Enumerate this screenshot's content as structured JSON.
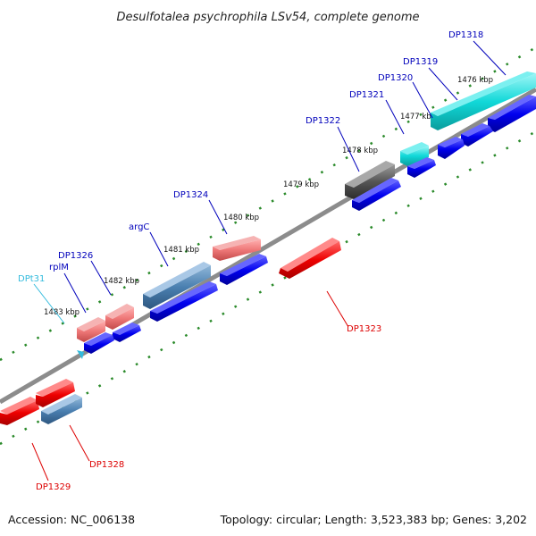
{
  "header": {
    "title": "Desulfotalea psychrophila LSv54, complete genome"
  },
  "footer": {
    "accession": "Accession: NC_006138",
    "summary": "Topology: circular; Length: 3,523,383 bp; Genes: 3,202"
  },
  "ticks": [
    "1476 kbp",
    "1477 kbp",
    "1478 kbp",
    "1479 kbp",
    "1480 kbp",
    "1481 kbp",
    "1482 kbp",
    "1483 kbp"
  ],
  "colors": {
    "forward_label": "#0000bb",
    "reverse_label": "#dd0000",
    "trna_label": "#33bbdd",
    "backbone": "#8c8c8c",
    "tick": "#2a8a2a",
    "orf_blue": "#0000ee",
    "gene_red": "#ee0000",
    "gene_pink": "#ee7777",
    "gene_steel": "#4a7fb0",
    "gene_cyan": "#10d8d8",
    "gene_grey": "#555555"
  },
  "genes": {
    "forward": [
      "DP1318",
      "DP1319",
      "DP1320",
      "DP1321",
      "DP1322",
      "DP1324",
      "argC",
      "DP1326",
      "rplM"
    ],
    "trna": [
      "DPt31"
    ],
    "reverse": [
      "DP1323",
      "DP1328",
      "DP1329"
    ]
  }
}
